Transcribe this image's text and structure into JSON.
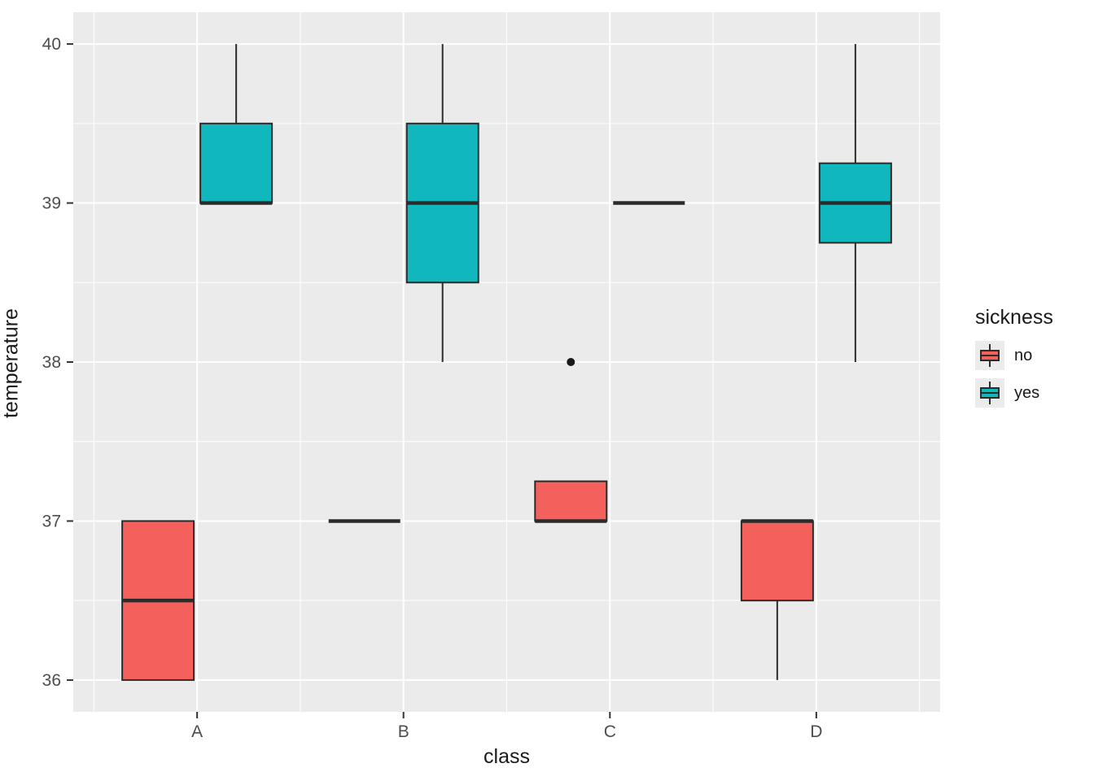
{
  "chart_data": {
    "type": "boxplot",
    "title": "",
    "xlabel": "class",
    "ylabel": "temperature",
    "categories": [
      "A",
      "B",
      "C",
      "D"
    ],
    "y_ticks": [
      36,
      37,
      38,
      39,
      40
    ],
    "y_minor": [
      36.5,
      37.5,
      38.5,
      39.5
    ],
    "ylim": [
      35.8,
      40.2
    ],
    "grid": true,
    "colors": {
      "panel": "#EBEBEB",
      "gridline": "#FFFFFF",
      "stroke": "#2B2B2B",
      "tick_label": "#4D4D4D",
      "outlier": "#1A1A1A"
    },
    "legend": {
      "title": "sickness",
      "position": "right",
      "entries": [
        {
          "label": "no",
          "color": "#F4615C"
        },
        {
          "label": "yes",
          "color": "#10B7BD"
        }
      ]
    },
    "series": [
      {
        "name": "no",
        "color": "#F4615C",
        "boxes": [
          {
            "category": "A",
            "min": 36,
            "q1": 36,
            "median": 36.5,
            "q3": 37,
            "max": 37,
            "outliers": []
          },
          {
            "category": "B",
            "min": 37,
            "q1": 37,
            "median": 37,
            "q3": 37,
            "max": 37,
            "outliers": []
          },
          {
            "category": "C",
            "min": 37,
            "q1": 37,
            "median": 37,
            "q3": 37.25,
            "max": 37.25,
            "outliers": [
              38
            ]
          },
          {
            "category": "D",
            "min": 36,
            "q1": 36.5,
            "median": 37,
            "q3": 37,
            "max": 37,
            "outliers": []
          }
        ]
      },
      {
        "name": "yes",
        "color": "#10B7BD",
        "boxes": [
          {
            "category": "A",
            "min": 39,
            "q1": 39,
            "median": 39,
            "q3": 39.5,
            "max": 40,
            "outliers": []
          },
          {
            "category": "B",
            "min": 38,
            "q1": 38.5,
            "median": 39,
            "q3": 39.5,
            "max": 40,
            "outliers": []
          },
          {
            "category": "C",
            "min": 39,
            "q1": 39,
            "median": 39,
            "q3": 39,
            "max": 39,
            "outliers": []
          },
          {
            "category": "D",
            "min": 38,
            "q1": 38.75,
            "median": 39,
            "q3": 39.25,
            "max": 40,
            "outliers": []
          }
        ]
      }
    ]
  }
}
